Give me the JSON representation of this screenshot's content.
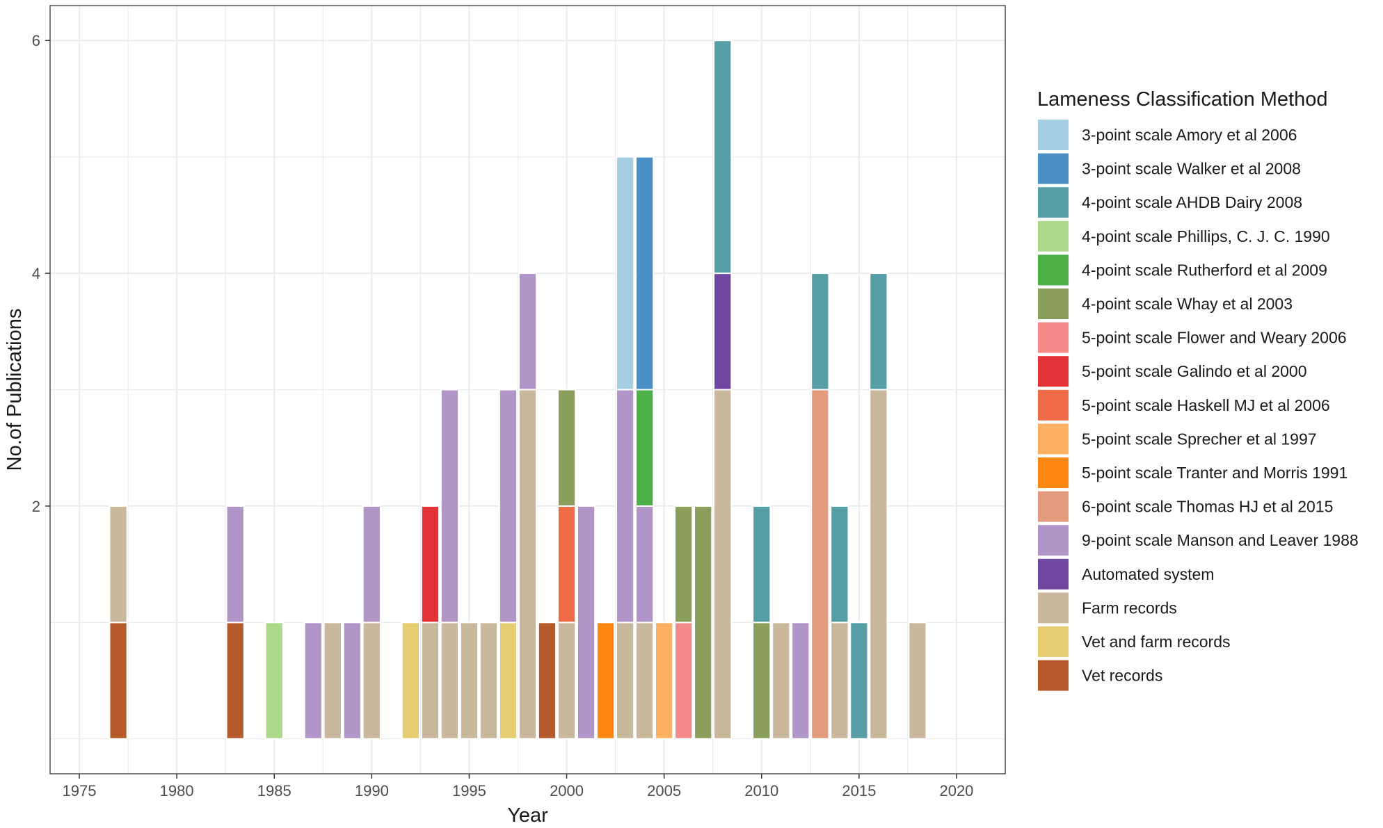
{
  "chart_data": {
    "type": "bar",
    "stacked": true,
    "xlabel": "Year",
    "ylabel": "No.of Publications",
    "xlim": [
      1973.5,
      2022.5
    ],
    "ylim": [
      -0.3,
      6.3
    ],
    "x_ticks": [
      1975,
      1980,
      1985,
      1990,
      1995,
      2000,
      2005,
      2010,
      2015,
      2020
    ],
    "y_ticks": [
      2,
      4,
      6
    ],
    "grid": true,
    "legend": {
      "title": "Lameness Classification Method",
      "position": "right"
    },
    "series": [
      {
        "name": "3-point scale Amory et al 2006",
        "color": "#A6CEE3"
      },
      {
        "name": "3-point scale Walker et al 2008",
        "color": "#4A8FC6"
      },
      {
        "name": "4-point scale AHDB Dairy 2008",
        "color": "#569EA6"
      },
      {
        "name": "4-point scale Phillips, C. J. C. 1990",
        "color": "#ACD88A"
      },
      {
        "name": "4-point scale Rutherford et al 2009",
        "color": "#4CAF48"
      },
      {
        "name": "4-point scale Whay et al 2003",
        "color": "#8A9E5C"
      },
      {
        "name": "5-point scale Flower and Weary 2006",
        "color": "#F48A88"
      },
      {
        "name": "5-point scale Galindo et al 2000",
        "color": "#E33336"
      },
      {
        "name": "5-point scale Haskell MJ et al 2006",
        "color": "#F06C48"
      },
      {
        "name": "5-point scale Sprecher et al 1997",
        "color": "#FBB062"
      },
      {
        "name": "5-point scale Tranter and Morris 1991",
        "color": "#FE8712"
      },
      {
        "name": "6-point scale Thomas HJ et al 2015",
        "color": "#E29B7D"
      },
      {
        "name": "9-point scale Manson and Leaver 1988",
        "color": "#B195C9"
      },
      {
        "name": "Automated system",
        "color": "#6F47A0"
      },
      {
        "name": "Farm records",
        "color": "#C9B89B"
      },
      {
        "name": "Vet and farm records",
        "color": "#E7CD72"
      },
      {
        "name": "Vet records",
        "color": "#B65A2B"
      }
    ],
    "bars": [
      {
        "year": 1977,
        "stack": [
          [
            "Vet records",
            1
          ],
          [
            "Farm records",
            1
          ]
        ]
      },
      {
        "year": 1983,
        "stack": [
          [
            "Vet records",
            1
          ],
          [
            "9-point scale Manson and Leaver 1988",
            1
          ]
        ]
      },
      {
        "year": 1985,
        "stack": [
          [
            "4-point scale Phillips, C. J. C. 1990",
            1
          ]
        ]
      },
      {
        "year": 1987,
        "stack": [
          [
            "9-point scale Manson and Leaver 1988",
            1
          ]
        ]
      },
      {
        "year": 1988,
        "stack": [
          [
            "Farm records",
            1
          ]
        ]
      },
      {
        "year": 1989,
        "stack": [
          [
            "9-point scale Manson and Leaver 1988",
            1
          ]
        ]
      },
      {
        "year": 1990,
        "stack": [
          [
            "Farm records",
            1
          ],
          [
            "9-point scale Manson and Leaver 1988",
            1
          ]
        ]
      },
      {
        "year": 1992,
        "stack": [
          [
            "Vet and farm records",
            1
          ]
        ]
      },
      {
        "year": 1993,
        "stack": [
          [
            "Farm records",
            1
          ],
          [
            "5-point scale Galindo et al 2000",
            1
          ]
        ]
      },
      {
        "year": 1994,
        "stack": [
          [
            "Farm records",
            1
          ],
          [
            "9-point scale Manson and Leaver 1988",
            2
          ]
        ]
      },
      {
        "year": 1995,
        "stack": [
          [
            "Farm records",
            1
          ]
        ]
      },
      {
        "year": 1996,
        "stack": [
          [
            "Farm records",
            1
          ]
        ]
      },
      {
        "year": 1997,
        "stack": [
          [
            "Vet and farm records",
            1
          ],
          [
            "9-point scale Manson and Leaver 1988",
            2
          ]
        ]
      },
      {
        "year": 1998,
        "stack": [
          [
            "Farm records",
            3
          ],
          [
            "9-point scale Manson and Leaver 1988",
            1
          ]
        ]
      },
      {
        "year": 1999,
        "stack": [
          [
            "Vet records",
            1
          ]
        ]
      },
      {
        "year": 2000,
        "stack": [
          [
            "Farm records",
            1
          ],
          [
            "5-point scale Haskell MJ et al 2006",
            1
          ],
          [
            "4-point scale Whay et al 2003",
            1
          ]
        ]
      },
      {
        "year": 2001,
        "stack": [
          [
            "9-point scale Manson and Leaver 1988",
            2
          ]
        ]
      },
      {
        "year": 2002,
        "stack": [
          [
            "5-point scale Tranter and Morris 1991",
            1
          ]
        ]
      },
      {
        "year": 2003,
        "stack": [
          [
            "Farm records",
            1
          ],
          [
            "9-point scale Manson and Leaver 1988",
            2
          ],
          [
            "3-point scale Amory et al 2006",
            2
          ]
        ]
      },
      {
        "year": 2004,
        "stack": [
          [
            "Farm records",
            1
          ],
          [
            "9-point scale Manson and Leaver 1988",
            1
          ],
          [
            "4-point scale Rutherford et al 2009",
            1
          ],
          [
            "3-point scale Walker et al 2008",
            2
          ]
        ]
      },
      {
        "year": 2005,
        "stack": [
          [
            "5-point scale Sprecher et al 1997",
            1
          ]
        ]
      },
      {
        "year": 2006,
        "stack": [
          [
            "5-point scale Flower and Weary 2006",
            1
          ],
          [
            "4-point scale Whay et al 2003",
            1
          ]
        ]
      },
      {
        "year": 2007,
        "stack": [
          [
            "4-point scale Whay et al 2003",
            2
          ]
        ]
      },
      {
        "year": 2008,
        "stack": [
          [
            "Farm records",
            3
          ],
          [
            "Automated system",
            1
          ],
          [
            "4-point scale AHDB Dairy 2008",
            2
          ]
        ]
      },
      {
        "year": 2010,
        "stack": [
          [
            "4-point scale Whay et al 2003",
            1
          ],
          [
            "4-point scale AHDB Dairy 2008",
            1
          ]
        ]
      },
      {
        "year": 2011,
        "stack": [
          [
            "Farm records",
            1
          ]
        ]
      },
      {
        "year": 2012,
        "stack": [
          [
            "9-point scale Manson and Leaver 1988",
            1
          ]
        ]
      },
      {
        "year": 2013,
        "stack": [
          [
            "6-point scale Thomas HJ et al 2015",
            3
          ],
          [
            "4-point scale AHDB Dairy 2008",
            1
          ]
        ]
      },
      {
        "year": 2014,
        "stack": [
          [
            "Farm records",
            1
          ],
          [
            "4-point scale AHDB Dairy 2008",
            1
          ]
        ]
      },
      {
        "year": 2015,
        "stack": [
          [
            "4-point scale AHDB Dairy 2008",
            1
          ]
        ]
      },
      {
        "year": 2016,
        "stack": [
          [
            "Farm records",
            3
          ],
          [
            "4-point scale AHDB Dairy 2008",
            1
          ]
        ]
      },
      {
        "year": 2018,
        "stack": [
          [
            "Farm records",
            1
          ]
        ]
      }
    ]
  }
}
